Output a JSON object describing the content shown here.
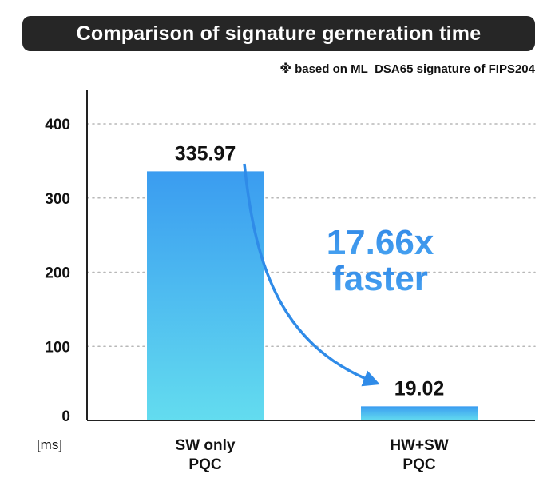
{
  "header": {
    "title": "Comparison of signature gerneration time",
    "note": "※ based on ML_DSA65 signature of FIPS204"
  },
  "annotation": {
    "line1": "17.66x",
    "line2": "faster"
  },
  "colors": {
    "title_bg": "#262626",
    "bar_top": "#3a9cf0",
    "bar_bottom": "#63dcef",
    "accent": "#2f8be8"
  },
  "chart_data": {
    "type": "bar",
    "categories": [
      [
        "SW only",
        "PQC"
      ],
      [
        "HW+SW",
        "PQC"
      ]
    ],
    "values": [
      335.97,
      19.02
    ],
    "value_labels": [
      "335.97",
      "19.02"
    ],
    "title": "Comparison of signature gerneration time",
    "unit": "[ms]",
    "ylim": [
      0,
      450
    ],
    "yticks": [
      0,
      100,
      200,
      300,
      400
    ],
    "grid": true
  }
}
